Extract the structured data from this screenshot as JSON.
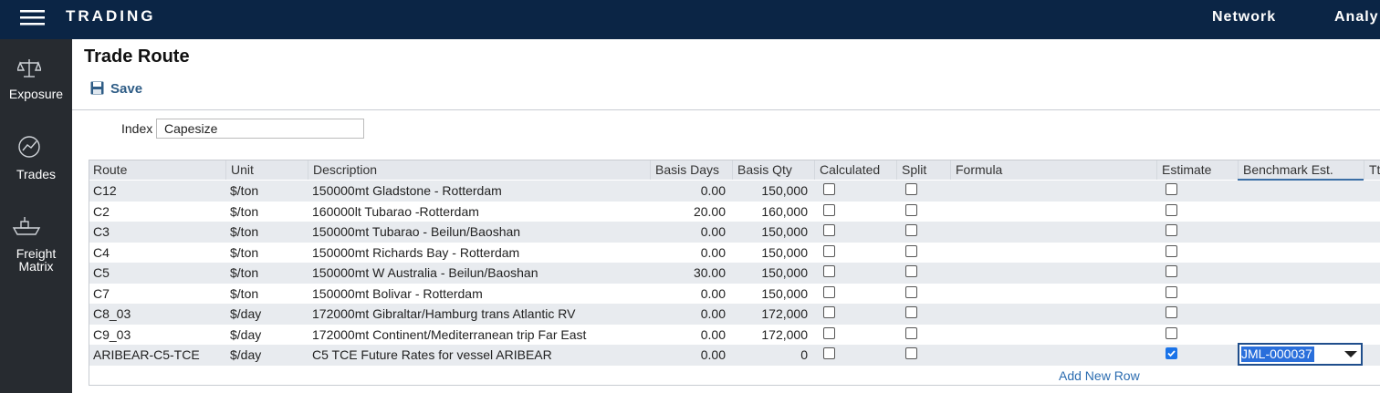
{
  "nav": {
    "brand": "TRADING",
    "links": [
      "Network",
      "Analy"
    ]
  },
  "sidebar": [
    {
      "label": "Exposure"
    },
    {
      "label": "Trades"
    },
    {
      "label": "Freight Matrix"
    }
  ],
  "page": {
    "title": "Trade Route",
    "save": "Save",
    "index_label": "Index",
    "index_value": "Capesize"
  },
  "table": {
    "columns": [
      "Route",
      "Unit",
      "Description",
      "Basis Days",
      "Basis Qty",
      "Calculated",
      "Split",
      "Formula",
      "Estimate",
      "Benchmark Est.",
      "Ttl"
    ],
    "rows": [
      {
        "route": "C12",
        "unit": "$/ton",
        "description": "150000mt Gladstone - Rotterdam",
        "basis_days": "0.00",
        "basis_qty": "150,000",
        "calculated": false,
        "split": false,
        "estimate": false
      },
      {
        "route": "C2",
        "unit": "$/ton",
        "description": "160000lt Tubarao -Rotterdam",
        "basis_days": "20.00",
        "basis_qty": "160,000",
        "calculated": false,
        "split": false,
        "estimate": false
      },
      {
        "route": "C3",
        "unit": "$/ton",
        "description": "150000mt Tubarao - Beilun/Baoshan",
        "basis_days": "0.00",
        "basis_qty": "150,000",
        "calculated": false,
        "split": false,
        "estimate": false
      },
      {
        "route": "C4",
        "unit": "$/ton",
        "description": "150000mt Richards Bay - Rotterdam",
        "basis_days": "0.00",
        "basis_qty": "150,000",
        "calculated": false,
        "split": false,
        "estimate": false
      },
      {
        "route": "C5",
        "unit": "$/ton",
        "description": "150000mt W Australia - Beilun/Baoshan",
        "basis_days": "30.00",
        "basis_qty": "150,000",
        "calculated": false,
        "split": false,
        "estimate": false
      },
      {
        "route": "C7",
        "unit": "$/ton",
        "description": "150000mt Bolivar - Rotterdam",
        "basis_days": "0.00",
        "basis_qty": "150,000",
        "calculated": false,
        "split": false,
        "estimate": false
      },
      {
        "route": "C8_03",
        "unit": "$/day",
        "description": "172000mt Gibraltar/Hamburg trans Atlantic RV",
        "basis_days": "0.00",
        "basis_qty": "172,000",
        "calculated": false,
        "split": false,
        "estimate": false
      },
      {
        "route": "C9_03",
        "unit": "$/day",
        "description": "172000mt Continent/Mediterranean trip Far East",
        "basis_days": "0.00",
        "basis_qty": "172,000",
        "calculated": false,
        "split": false,
        "estimate": false
      },
      {
        "route": "ARIBEAR-C5-TCE",
        "unit": "$/day",
        "description": "C5 TCE Future Rates for vessel ARIBEAR",
        "basis_days": "0.00",
        "basis_qty": "0",
        "calculated": false,
        "split": false,
        "estimate": true,
        "benchmark": "JML-000037"
      }
    ],
    "add_row": "Add New Row"
  }
}
